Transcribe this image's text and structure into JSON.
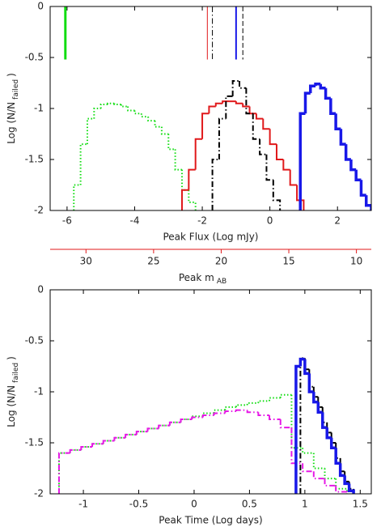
{
  "chart_data": [
    {
      "type": "step-histogram",
      "xlabel": "Peak Flux (Log mJy)",
      "ylabel": "Log (N/N",
      "ylabel_sub": "failed",
      "ylabel_end": ")",
      "xlim": [
        -6.5,
        3
      ],
      "xticks": [
        -6,
        -4,
        -2,
        0,
        2
      ],
      "ylim": [
        -2,
        0
      ],
      "yticks": [
        0,
        -0.5,
        -1,
        -1.5,
        -2
      ],
      "secondary_axis": {
        "label": "Peak m",
        "label_sub": "AB",
        "color": "#e0191b",
        "xlim": [
          32.65,
          8.9
        ],
        "xticks": [
          30,
          25,
          20,
          15,
          10
        ]
      },
      "vlines": [
        {
          "x": -6.05,
          "y": -0.52,
          "color": "#11dd11",
          "style": "solid",
          "width": 3
        },
        {
          "x": -1.85,
          "y": -0.52,
          "color": "#e0191b",
          "style": "solid",
          "width": 1
        },
        {
          "x": -1.7,
          "y": -0.52,
          "color": "#000000",
          "style": "dashdot",
          "width": 1
        },
        {
          "x": -1.0,
          "y": -0.52,
          "color": "#1818e8",
          "style": "solid",
          "width": 2
        },
        {
          "x": -0.8,
          "y": -0.52,
          "color": "#000000",
          "style": "dashed",
          "width": 1
        }
      ],
      "series": [
        {
          "color": "#11dd11",
          "style": "dotted",
          "width": 2,
          "bins": [
            -5.8,
            -5.6,
            -5.4,
            -5.2,
            -5.0,
            -4.8,
            -4.6,
            -4.4,
            -4.2,
            -4.0,
            -3.8,
            -3.6,
            -3.4,
            -3.2,
            -3.0,
            -2.8,
            -2.6,
            -2.4,
            -2.2
          ],
          "values": [
            -1.75,
            -1.35,
            -1.1,
            -1.0,
            -0.96,
            -0.95,
            -0.96,
            -0.98,
            -1.02,
            -1.05,
            -1.08,
            -1.12,
            -1.18,
            -1.25,
            -1.4,
            -1.6,
            -1.8,
            -1.92
          ]
        },
        {
          "color": "#e0191b",
          "style": "solid",
          "width": 2,
          "bins": [
            -2.6,
            -2.4,
            -2.2,
            -2.0,
            -1.8,
            -1.6,
            -1.4,
            -1.2,
            -1.0,
            -0.8,
            -0.6,
            -0.4,
            -0.2,
            0.0,
            0.2,
            0.4,
            0.6,
            0.8,
            1.0
          ],
          "values": [
            -1.8,
            -1.6,
            -1.3,
            -1.05,
            -0.98,
            -0.95,
            -0.93,
            -0.93,
            -0.95,
            -0.98,
            -1.05,
            -1.1,
            -1.2,
            -1.35,
            -1.5,
            -1.6,
            -1.75,
            -1.9
          ]
        },
        {
          "color": "#000000",
          "style": "dashdot",
          "width": 2,
          "bins": [
            -1.7,
            -1.5,
            -1.3,
            -1.1,
            -0.9,
            -0.7,
            -0.5,
            -0.3,
            -0.1,
            0.1,
            0.3
          ],
          "values": [
            -1.5,
            -1.1,
            -0.88,
            -0.73,
            -0.8,
            -1.05,
            -1.3,
            -1.45,
            -1.7,
            -1.9
          ]
        },
        {
          "color": "#1818e8",
          "style": "solid",
          "width": 3.5,
          "bins": [
            0.9,
            1.05,
            1.2,
            1.35,
            1.5,
            1.65,
            1.8,
            1.95,
            2.1,
            2.25,
            2.4,
            2.55,
            2.7,
            2.85,
            3.0
          ],
          "values": [
            -1.05,
            -0.85,
            -0.78,
            -0.76,
            -0.8,
            -0.9,
            -1.05,
            -1.2,
            -1.35,
            -1.5,
            -1.6,
            -1.7,
            -1.85,
            -1.95
          ]
        }
      ]
    },
    {
      "type": "step-histogram",
      "xlabel": "Peak Time (Log days)",
      "ylabel": "Log (N/N",
      "ylabel_sub": "failed",
      "ylabel_end": ")",
      "xlim": [
        -1.3,
        1.6
      ],
      "xticks": [
        -1,
        -0.5,
        0,
        0.5,
        1,
        1.5
      ],
      "ylim": [
        -2,
        0
      ],
      "yticks": [
        0,
        -0.5,
        -1,
        -1.5,
        -2
      ],
      "series": [
        {
          "color": "#11dd11",
          "style": "dotted",
          "width": 2,
          "bins": [
            -1.22,
            -1.12,
            -1.02,
            -0.92,
            -0.82,
            -0.72,
            -0.62,
            -0.52,
            -0.42,
            -0.32,
            -0.22,
            -0.12,
            -0.02,
            0.08,
            0.18,
            0.28,
            0.38,
            0.48,
            0.58,
            0.68,
            0.78,
            0.88,
            0.98,
            1.08,
            1.18,
            1.28,
            1.38
          ],
          "values": [
            -1.6,
            -1.57,
            -1.54,
            -1.51,
            -1.48,
            -1.45,
            -1.42,
            -1.39,
            -1.36,
            -1.33,
            -1.3,
            -1.27,
            -1.24,
            -1.21,
            -1.18,
            -1.15,
            -1.13,
            -1.11,
            -1.09,
            -1.06,
            -1.03,
            -1.55,
            -1.6,
            -1.75,
            -1.85,
            -1.95
          ]
        },
        {
          "color": "#e619e6",
          "style": "dashdot",
          "width": 2,
          "bins": [
            -1.22,
            -1.12,
            -1.02,
            -0.92,
            -0.82,
            -0.72,
            -0.62,
            -0.52,
            -0.42,
            -0.32,
            -0.22,
            -0.12,
            -0.02,
            0.08,
            0.18,
            0.28,
            0.38,
            0.48,
            0.58,
            0.68,
            0.78,
            0.88,
            0.98,
            1.08,
            1.18,
            1.28,
            1.38
          ],
          "values": [
            -1.6,
            -1.57,
            -1.54,
            -1.51,
            -1.48,
            -1.45,
            -1.42,
            -1.39,
            -1.36,
            -1.33,
            -1.3,
            -1.27,
            -1.25,
            -1.23,
            -1.21,
            -1.19,
            -1.18,
            -1.2,
            -1.23,
            -1.27,
            -1.35,
            -1.7,
            -1.78,
            -1.85,
            -1.92,
            -1.98
          ]
        },
        {
          "color": "#000000",
          "style": "dashdot",
          "width": 2,
          "bins": [
            0.96,
            1.0,
            1.04,
            1.08,
            1.12,
            1.16,
            1.2,
            1.24,
            1.28,
            1.32,
            1.36,
            1.4,
            1.44
          ],
          "values": [
            -0.67,
            -0.78,
            -0.95,
            -1.05,
            -1.15,
            -1.3,
            -1.4,
            -1.5,
            -1.65,
            -1.78,
            -1.88,
            -1.95
          ]
        },
        {
          "color": "#1818e8",
          "style": "solid",
          "width": 3.5,
          "bins": [
            0.92,
            0.96,
            1.0,
            1.04,
            1.08,
            1.12,
            1.16,
            1.2,
            1.24,
            1.28,
            1.32,
            1.36,
            1.4,
            1.44
          ],
          "values": [
            -0.75,
            -0.68,
            -0.82,
            -1.0,
            -1.1,
            -1.2,
            -1.35,
            -1.45,
            -1.55,
            -1.7,
            -1.82,
            -1.9,
            -1.97
          ]
        }
      ]
    }
  ]
}
